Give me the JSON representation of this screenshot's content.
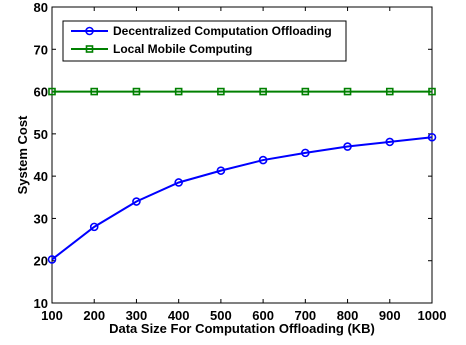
{
  "chart_data": {
    "type": "line",
    "xlabel": "Data Size For Computation Offloading (KB)",
    "ylabel": "System Cost",
    "xlim": [
      100,
      1000
    ],
    "ylim": [
      10,
      80
    ],
    "xticks": [
      "100",
      "200",
      "300",
      "400",
      "500",
      "600",
      "700",
      "800",
      "900",
      "1000"
    ],
    "yticks": [
      "10",
      "20",
      "30",
      "40",
      "50",
      "60",
      "70",
      "80"
    ],
    "grid": false,
    "legend_position": "top-left",
    "x": [
      100,
      200,
      300,
      400,
      500,
      600,
      700,
      800,
      900,
      1000
    ],
    "series": [
      {
        "name": "Decentralized Computation Offloading",
        "color": "#0000ff",
        "marker": "circle",
        "values": [
          20.3,
          28.0,
          34.0,
          38.5,
          41.3,
          43.8,
          45.5,
          47.0,
          48.1,
          49.2
        ]
      },
      {
        "name": "Local Mobile Computing",
        "color": "#008000",
        "marker": "square",
        "values": [
          60,
          60,
          60,
          60,
          60,
          60,
          60,
          60,
          60,
          60
        ]
      }
    ]
  }
}
